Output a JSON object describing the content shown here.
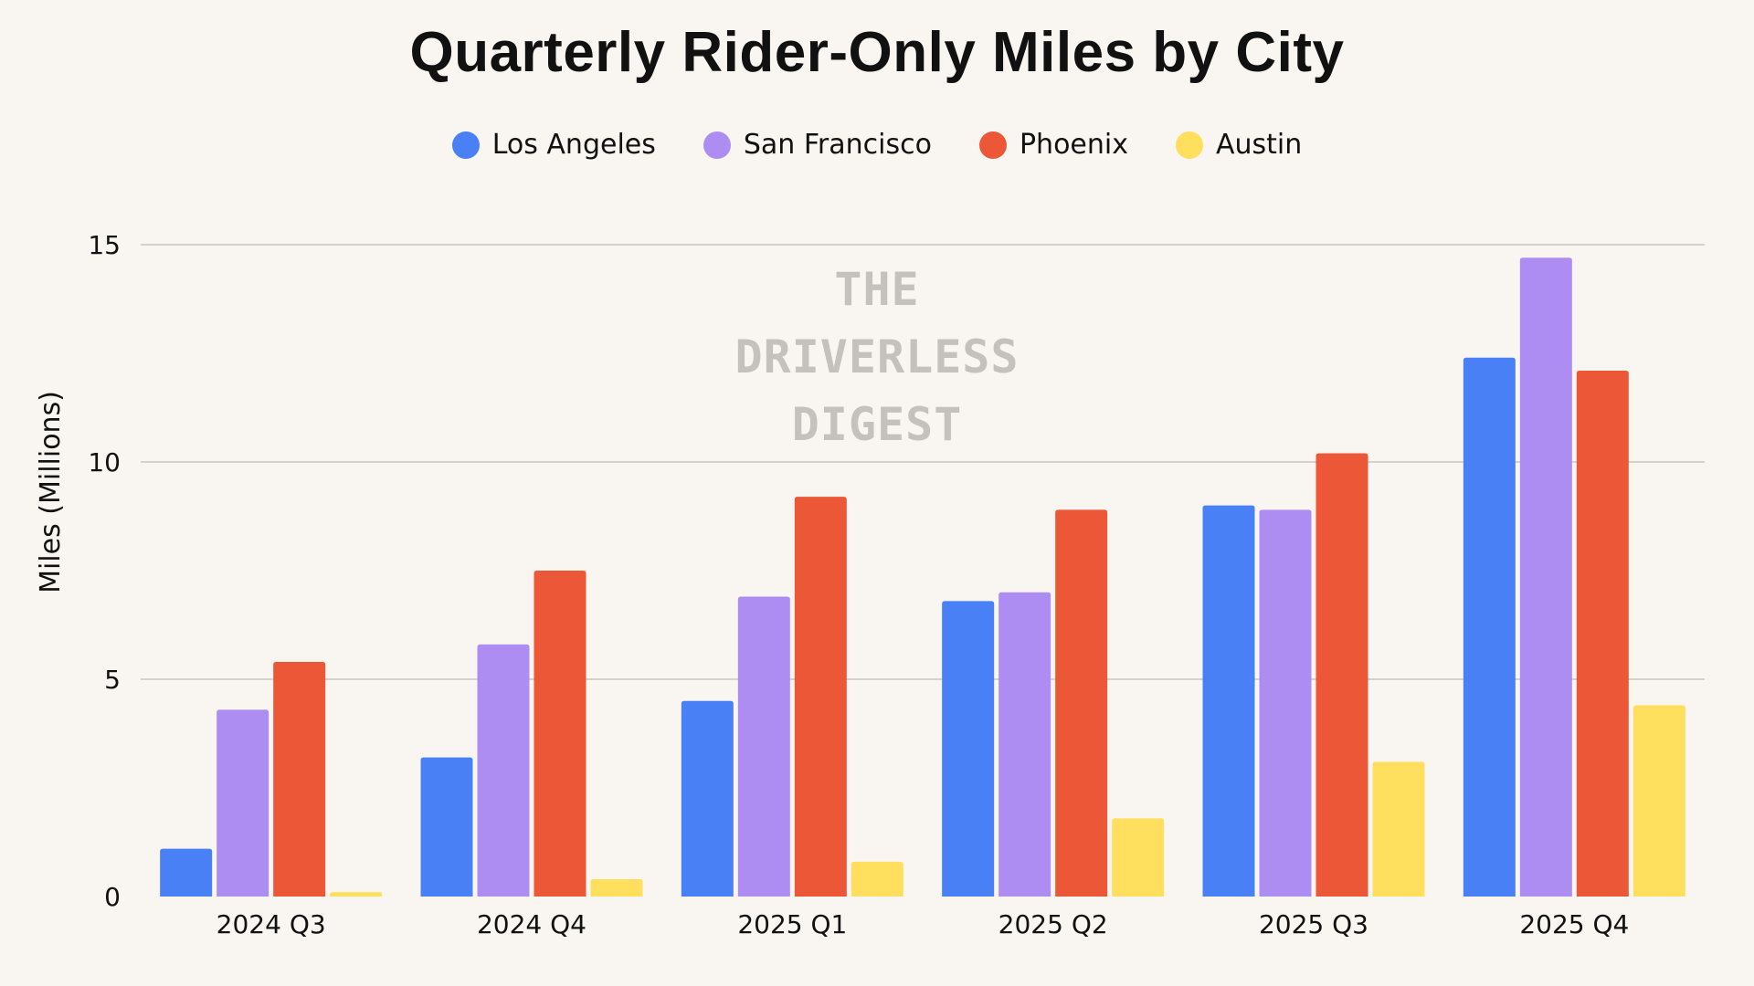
{
  "chart_data": {
    "type": "bar",
    "title": "Quarterly Rider-Only Miles by City",
    "xlabel": "",
    "ylabel": "Miles (Millions)",
    "ylim": [
      0,
      15
    ],
    "yticks": [
      0,
      5,
      10,
      15
    ],
    "grid": true,
    "legend_position": "top-center",
    "categories": [
      "2024 Q3",
      "2024 Q4",
      "2025 Q1",
      "2025 Q2",
      "2025 Q3",
      "2025 Q4"
    ],
    "series": [
      {
        "name": "Los Angeles",
        "color": "#4a80f5",
        "values": [
          1.1,
          3.2,
          4.5,
          6.8,
          9.0,
          12.4
        ]
      },
      {
        "name": "San Francisco",
        "color": "#ae8df2",
        "values": [
          4.3,
          5.8,
          6.9,
          7.0,
          8.9,
          14.7
        ]
      },
      {
        "name": "Phoenix",
        "color": "#ec5737",
        "values": [
          5.4,
          7.5,
          9.2,
          8.9,
          10.2,
          12.1
        ]
      },
      {
        "name": "Austin",
        "color": "#ffdf5d",
        "values": [
          0.1,
          0.4,
          0.8,
          1.8,
          3.1,
          4.4
        ]
      }
    ]
  },
  "watermark": {
    "lines": [
      "THE",
      "DRIVERLESS",
      "DIGEST"
    ]
  }
}
